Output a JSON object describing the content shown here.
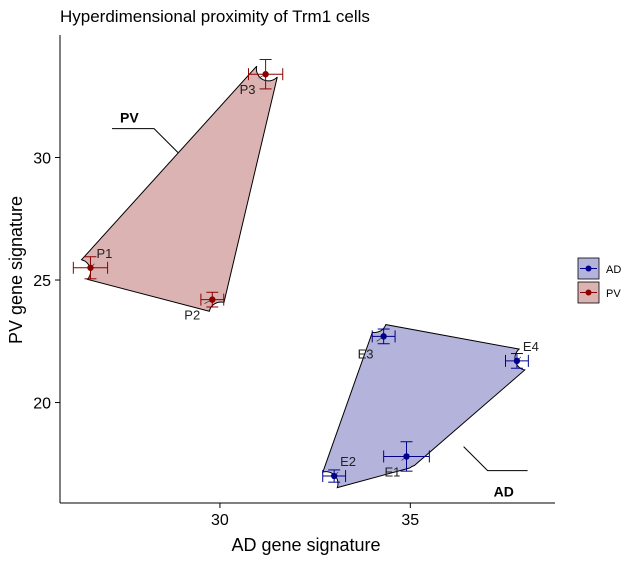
{
  "chart_data": {
    "type": "scatter",
    "title": "Hyperdimensional proximity of Trm1 cells",
    "xlabel": "AD gene signature",
    "ylabel": "PV gene signature",
    "xlim": [
      25.8,
      38.8
    ],
    "ylim": [
      15.9,
      35.0
    ],
    "x_ticks": [
      30,
      35
    ],
    "y_ticks": [
      20,
      25,
      30
    ],
    "grid": false,
    "legend_position": "right",
    "series": [
      {
        "name": "AD",
        "color": "#00008B",
        "fill": "#B3B3DC",
        "group_label": "AD",
        "points": [
          {
            "label": "E1",
            "x": 34.9,
            "y": 17.8,
            "xerr": 0.6,
            "yerr": 0.6
          },
          {
            "label": "E2",
            "x": 33.0,
            "y": 17.0,
            "xerr": 0.3,
            "yerr": 0.25
          },
          {
            "label": "E3",
            "x": 34.3,
            "y": 22.7,
            "xerr": 0.3,
            "yerr": 0.3
          },
          {
            "label": "E4",
            "x": 37.8,
            "y": 21.7,
            "xerr": 0.3,
            "yerr": 0.3
          }
        ]
      },
      {
        "name": "PV",
        "color": "#8B0000",
        "fill": "#DCB3B3",
        "group_label": "PV",
        "points": [
          {
            "label": "P1",
            "x": 26.6,
            "y": 25.5,
            "xerr": 0.45,
            "yerr": 0.45
          },
          {
            "label": "P2",
            "x": 29.8,
            "y": 24.2,
            "xerr": 0.3,
            "yerr": 0.3
          },
          {
            "label": "P3",
            "x": 31.2,
            "y": 33.4,
            "xerr": 0.45,
            "yerr": 0.6
          }
        ]
      }
    ]
  }
}
